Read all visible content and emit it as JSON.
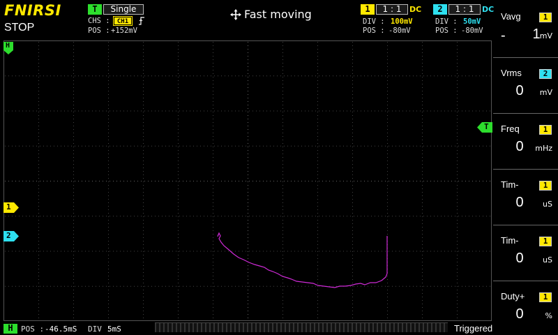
{
  "header": {
    "brand": "FNIRSI",
    "run_state": "STOP",
    "hint": "Fast moving",
    "hint_icon": "move-arrows-icon",
    "trigger": {
      "badge": "T",
      "mode": "Single",
      "chs_label": "CHS :",
      "chs_value": "CH1",
      "edge_icon": "rising-edge-icon",
      "pos_label": "POS :",
      "pos_value": "+152mV"
    },
    "ch1": {
      "badge": "1",
      "probe": "1 : 1",
      "coupling": "DC",
      "div_label": "DIV :",
      "div_value": "100mV",
      "pos_label": "POS :",
      "pos_value": "-80mV"
    },
    "ch2": {
      "badge": "2",
      "probe": "1 : 1",
      "coupling": "DC",
      "div_label": "DIV :",
      "div_value": "50mV",
      "pos_label": "POS :",
      "pos_value": "-80mV"
    }
  },
  "markers": {
    "h": "H",
    "t": "T",
    "ch1": "1",
    "ch2": "2"
  },
  "measurements": [
    {
      "label": "Vavg",
      "channel": "1",
      "sign": "-",
      "value": "1",
      "unit": "mV"
    },
    {
      "label": "Vrms",
      "channel": "2",
      "sign": "",
      "value": "0",
      "unit": "mV"
    },
    {
      "label": "Freq",
      "channel": "1",
      "sign": "",
      "value": "0",
      "unit": "mHz"
    },
    {
      "label": "Tim-",
      "channel": "1",
      "sign": "",
      "value": "0",
      "unit": "uS"
    },
    {
      "label": "Tim-",
      "channel": "1",
      "sign": "",
      "value": "0",
      "unit": "uS"
    },
    {
      "label": "Duty+",
      "channel": "1",
      "sign": "",
      "value": "0",
      "unit": "%"
    }
  ],
  "footer": {
    "h_badge": "H",
    "pos_label": "POS :",
    "pos_value": "-46.5mS",
    "div_label": "DIV :",
    "div_value": "5mS",
    "status": "Triggered"
  },
  "colors": {
    "ch1": "#ffe800",
    "ch2": "#2ee0f0",
    "trigger": "#2dde2d",
    "trace": "#d02ad8"
  }
}
